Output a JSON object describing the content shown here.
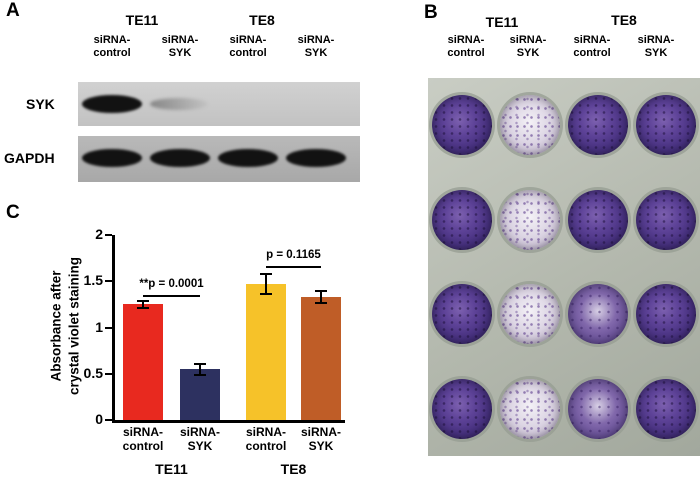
{
  "figure": {
    "panels": {
      "A": {
        "label": "A",
        "cell_lines": [
          "TE11",
          "TE8"
        ],
        "lane_labels": [
          "siRNA-control",
          "siRNA-SYK",
          "siRNA-control",
          "siRNA-SYK"
        ],
        "blot_rows": [
          {
            "name": "SYK",
            "band_intensities": [
              "strong",
              "faint",
              "none",
              "none"
            ]
          },
          {
            "name": "GAPDH",
            "band_intensities": [
              "strong",
              "strong",
              "strong",
              "strong"
            ]
          }
        ]
      },
      "B": {
        "label": "B",
        "cell_lines": [
          "TE11",
          "TE8"
        ],
        "lane_labels": [
          "siRNA-control",
          "siRNA-SYK",
          "siRNA-control",
          "siRNA-SYK"
        ],
        "well_grid": [
          [
            "dark",
            "light",
            "dark",
            "dark"
          ],
          [
            "dark",
            "light",
            "dark",
            "dark"
          ],
          [
            "dark",
            "light",
            "medium",
            "dark"
          ],
          [
            "dark",
            "light",
            "medium",
            "dark"
          ]
        ]
      },
      "C": {
        "label": "C"
      }
    }
  },
  "chart_data": {
    "type": "bar",
    "title": "",
    "categories": [
      "siRNA-control",
      "siRNA-SYK",
      "siRNA-control",
      "siRNA-SYK"
    ],
    "values": [
      1.25,
      0.55,
      1.47,
      1.33
    ],
    "errors": [
      0.04,
      0.06,
      0.11,
      0.07
    ],
    "bar_colors": [
      "#e8291f",
      "#2d3160",
      "#f6c229",
      "#bf5d27"
    ],
    "group_labels": [
      {
        "text": "TE11",
        "bars": [
          0,
          1
        ]
      },
      {
        "text": "TE8",
        "bars": [
          2,
          3
        ]
      }
    ],
    "ylabel": "Absorbance after\ncrystal violet staining",
    "xlabel": "",
    "ylim": [
      0,
      2
    ],
    "yticks": [
      0,
      0.5,
      1,
      1.5,
      2
    ],
    "annotations": [
      {
        "text": "**p = 0.0001",
        "bars": [
          0,
          1
        ],
        "y": 1.35
      },
      {
        "text": "p = 0.1165",
        "bars": [
          2,
          3
        ],
        "y": 1.66
      }
    ],
    "grid": false,
    "legend": null
  }
}
